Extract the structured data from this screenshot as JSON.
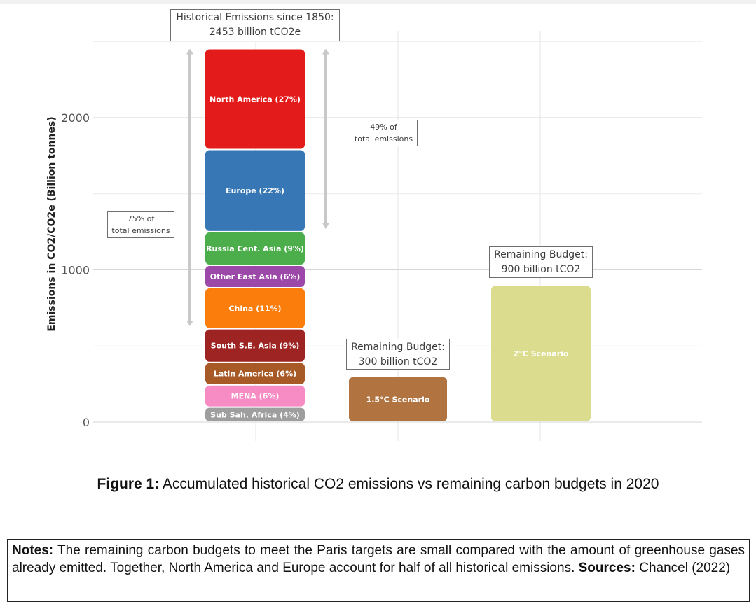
{
  "chart_data": {
    "type": "bar",
    "stacked": true,
    "ylabel": "Emissions in CO2/CO2e (Billion tonnes)",
    "ylim": [
      0,
      2600
    ],
    "yticks": [
      0,
      1000,
      2000
    ],
    "grid": true,
    "bars": [
      {
        "name": "historical",
        "segments": [
          {
            "label": "Sub Sah. Africa (4%)",
            "value": 98,
            "color": "#9e9e9e"
          },
          {
            "label": "MENA (6%)",
            "value": 147,
            "color": "#f78bc4"
          },
          {
            "label": "Latin America (6%)",
            "value": 147,
            "color": "#a85a26"
          },
          {
            "label": "South S.E. Asia (9%)",
            "value": 221,
            "color": "#9e2424"
          },
          {
            "label": "China (11%)",
            "value": 270,
            "color": "#fb7d0c"
          },
          {
            "label": "Other East Asia (6%)",
            "value": 147,
            "color": "#9c48a8"
          },
          {
            "label": "Russia Cent. Asia (9%)",
            "value": 221,
            "color": "#4bae4b"
          },
          {
            "label": "Europe (22%)",
            "value": 540,
            "color": "#3777b5"
          },
          {
            "label": "North America (27%)",
            "value": 662,
            "color": "#e31b1b"
          }
        ]
      },
      {
        "name": "1.5C",
        "segments": [
          {
            "label": "1.5°C Scenario",
            "value": 300,
            "color": "#b17340"
          }
        ]
      },
      {
        "name": "2C",
        "segments": [
          {
            "label": "2°C Scenario",
            "value": 900,
            "color": "#dcdc8e"
          }
        ]
      }
    ],
    "annotations": {
      "historical_title_1": "Historical Emissions since 1850:",
      "historical_title_2": "2453  billion tCO2e",
      "share49_1": "49% of",
      "share49_2": "total emissions",
      "share75_1": "75% of",
      "share75_2": "total emissions",
      "budget15_1": "Remaining Budget:",
      "budget15_2": "300 billion tCO2",
      "budget2_1": "Remaining Budget:",
      "budget2_2": "900 billion tCO2"
    }
  },
  "caption": {
    "label": "Figure 1:",
    "text": " Accumulated historical CO2 emissions vs remaining carbon budgets in 2020"
  },
  "notes": {
    "label": "Notes:",
    "text": " The remaining carbon budgets to meet the Paris targets are small compared with the amount of greenhouse gases already emitted.  Together, North America and Europe account for half of all historical emissions.",
    "sources_label": "Sources:",
    "sources_text": " Chancel (2022)"
  }
}
